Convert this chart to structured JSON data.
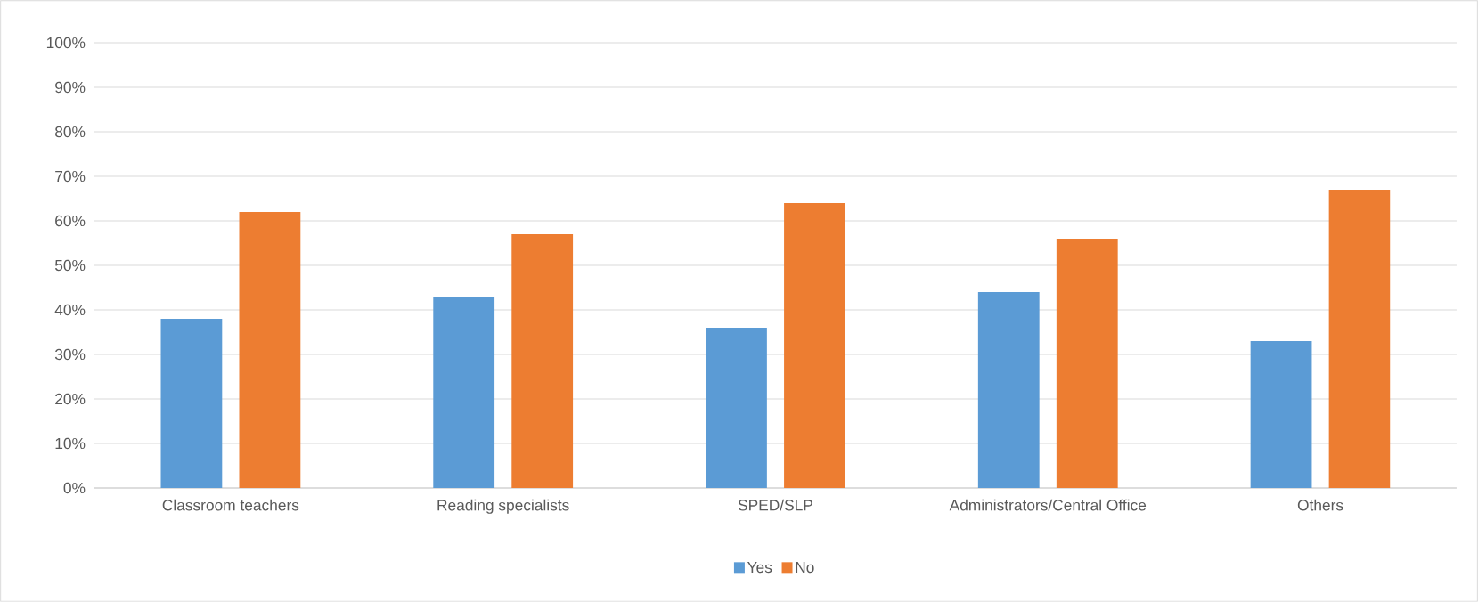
{
  "chart_data": {
    "type": "bar",
    "categories": [
      "Classroom teachers",
      "Reading specialists",
      "SPED/SLP",
      "Administrators/Central Office",
      "Others"
    ],
    "series": [
      {
        "name": "Yes",
        "color": "#5b9bd5",
        "values": [
          38,
          43,
          36,
          44,
          33
        ]
      },
      {
        "name": "No",
        "color": "#ed7d31",
        "values": [
          62,
          57,
          64,
          56,
          67
        ]
      }
    ],
    "ylim": [
      0,
      100
    ],
    "yticks": [
      {
        "value": 0,
        "label": "0%"
      },
      {
        "value": 10,
        "label": "10%"
      },
      {
        "value": 20,
        "label": "20%"
      },
      {
        "value": 30,
        "label": "30%"
      },
      {
        "value": 40,
        "label": "40%"
      },
      {
        "value": 50,
        "label": "50%"
      },
      {
        "value": 60,
        "label": "60%"
      },
      {
        "value": 70,
        "label": "70%"
      },
      {
        "value": 80,
        "label": "80%"
      },
      {
        "value": 90,
        "label": "90%"
      },
      {
        "value": 100,
        "label": "100%"
      }
    ],
    "grid": "y",
    "legend": "bottom"
  }
}
